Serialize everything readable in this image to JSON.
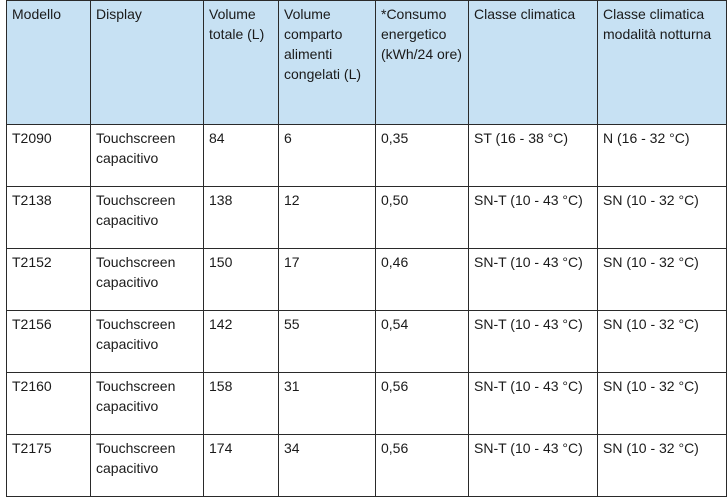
{
  "table": {
    "header": [
      "Modello",
      "Display",
      "Volume totale (L)",
      "Volume comparto alimenti congelati (L)",
      "*Consumo energetico (kWh/24 ore)",
      "Classe climatica",
      "Classe climatica modalità notturna"
    ],
    "rows": [
      [
        "T2090",
        "Touchscreen capacitivo",
        "84",
        "6",
        "0,35",
        "ST (16 - 38 °C)",
        "N (16 - 32 °C)"
      ],
      [
        "T2138",
        "Touchscreen capacitivo",
        "138",
        "12",
        "0,50",
        "SN-T (10 - 43 °C)",
        "SN (10 - 32 °C)"
      ],
      [
        "T2152",
        "Touchscreen capacitivo",
        "150",
        "17",
        "0,46",
        "SN-T (10 - 43 °C)",
        "SN (10 - 32 °C)"
      ],
      [
        "T2156",
        "Touchscreen capacitivo",
        "142",
        "55",
        "0,54",
        "SN-T (10 - 43 °C)",
        "SN (10 - 32 °C)"
      ],
      [
        "T2160",
        "Touchscreen capacitivo",
        "158",
        "31",
        "0,56",
        "SN-T (10 - 43 °C)",
        "SN (10 - 32 °C)"
      ],
      [
        "T2175",
        "Touchscreen capacitivo",
        "174",
        "34",
        "0,56",
        "SN-T (10 - 43 °C)",
        "SN (10 - 32 °C)"
      ]
    ]
  }
}
